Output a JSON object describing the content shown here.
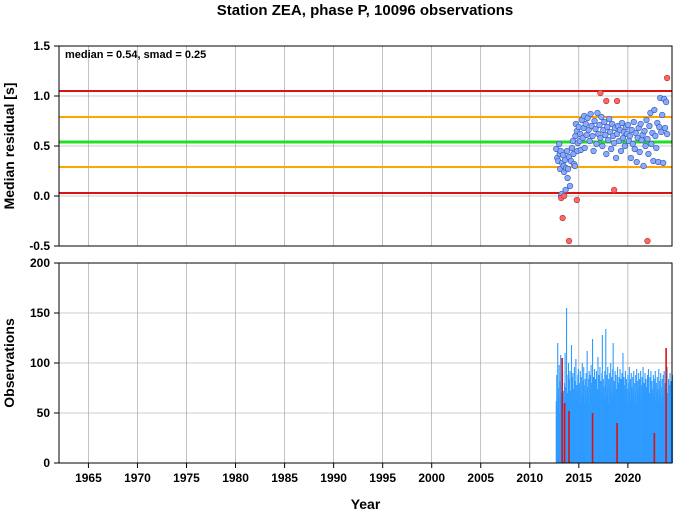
{
  "title": "Station ZEA, phase P, 10096 observations",
  "annotation": "median = 0.54, smad = 0.25",
  "colors": {
    "median_line": "#22dd22",
    "smad_line": "#ffa500",
    "limit_line": "#dd1111",
    "point_fill": "#88aaff",
    "outlier_fill": "#ff6666",
    "bar": "#2f9bff",
    "bar_outlier": "#dd1111"
  },
  "chart_data": [
    {
      "type": "scatter",
      "xlabel": "",
      "ylabel": "Median residual [s]",
      "xlim": [
        1962,
        2024.5
      ],
      "ylim": [
        -0.5,
        1.5
      ],
      "yticks": [
        -0.5,
        0.0,
        0.5,
        1.0,
        1.5
      ],
      "ytick_labels": [
        "-0.5",
        "0.0",
        "0.5",
        "1.0",
        "1.5"
      ],
      "grid": true,
      "hlines": [
        {
          "y": 1.05,
          "kind": "limit"
        },
        {
          "y": 0.79,
          "kind": "smad"
        },
        {
          "y": 0.54,
          "kind": "median"
        },
        {
          "y": 0.29,
          "kind": "smad"
        },
        {
          "y": 0.03,
          "kind": "limit"
        }
      ],
      "points": [
        [
          2012.7,
          0.47
        ],
        [
          2012.8,
          0.38
        ],
        [
          2012.9,
          0.35
        ],
        [
          2013.0,
          0.52
        ],
        [
          2013.05,
          0.42
        ],
        [
          2013.1,
          0.27
        ],
        [
          2013.15,
          0.45
        ],
        [
          2013.2,
          0.0
        ],
        [
          2013.25,
          0.02
        ],
        [
          2013.3,
          0.33
        ],
        [
          2013.4,
          0.41
        ],
        [
          2013.45,
          0.3
        ],
        [
          2013.5,
          0.24
        ],
        [
          2013.6,
          0.36
        ],
        [
          2013.65,
          0.06
        ],
        [
          2013.7,
          0.28
        ],
        [
          2013.8,
          0.45
        ],
        [
          2013.85,
          0.18
        ],
        [
          2013.9,
          0.27
        ],
        [
          2014.0,
          0.39
        ],
        [
          2014.1,
          0.1
        ],
        [
          2014.2,
          0.35
        ],
        [
          2014.3,
          0.48
        ],
        [
          2014.4,
          0.55
        ],
        [
          2014.45,
          0.42
        ],
        [
          2014.5,
          0.32
        ],
        [
          2014.6,
          0.3
        ],
        [
          2014.65,
          0.6
        ],
        [
          2014.7,
          0.72
        ],
        [
          2014.8,
          0.65
        ],
        [
          2014.85,
          0.45
        ],
        [
          2014.9,
          0.53
        ],
        [
          2015.0,
          0.69
        ],
        [
          2015.1,
          0.55
        ],
        [
          2015.15,
          0.62
        ],
        [
          2015.2,
          0.46
        ],
        [
          2015.3,
          0.76
        ],
        [
          2015.4,
          0.58
        ],
        [
          2015.5,
          0.68
        ],
        [
          2015.55,
          0.8
        ],
        [
          2015.6,
          0.48
        ],
        [
          2015.7,
          0.72
        ],
        [
          2015.8,
          0.61
        ],
        [
          2015.9,
          0.78
        ],
        [
          2016.0,
          0.66
        ],
        [
          2016.1,
          0.55
        ],
        [
          2016.2,
          0.82
        ],
        [
          2016.3,
          0.7
        ],
        [
          2016.4,
          0.6
        ],
        [
          2016.5,
          0.45
        ],
        [
          2016.6,
          0.75
        ],
        [
          2016.7,
          0.67
        ],
        [
          2016.8,
          0.52
        ],
        [
          2016.9,
          0.83
        ],
        [
          2017.0,
          0.62
        ],
        [
          2017.1,
          0.71
        ],
        [
          2017.2,
          0.58
        ],
        [
          2017.3,
          0.79
        ],
        [
          2017.4,
          0.5
        ],
        [
          2017.5,
          0.66
        ],
        [
          2017.6,
          0.74
        ],
        [
          2017.7,
          0.61
        ],
        [
          2017.8,
          0.42
        ],
        [
          2017.9,
          0.69
        ],
        [
          2018.0,
          0.56
        ],
        [
          2018.1,
          0.77
        ],
        [
          2018.2,
          0.64
        ],
        [
          2018.3,
          0.47
        ],
        [
          2018.4,
          0.72
        ],
        [
          2018.5,
          0.6
        ],
        [
          2018.6,
          0.53
        ],
        [
          2018.7,
          0.68
        ],
        [
          2018.8,
          0.38
        ],
        [
          2018.9,
          0.62
        ],
        [
          2019.0,
          0.7
        ],
        [
          2019.1,
          0.55
        ],
        [
          2019.2,
          0.66
        ],
        [
          2019.3,
          0.45
        ],
        [
          2019.4,
          0.73
        ],
        [
          2019.5,
          0.58
        ],
        [
          2019.6,
          0.64
        ],
        [
          2019.7,
          0.5
        ],
        [
          2019.8,
          0.69
        ],
        [
          2019.9,
          0.62
        ],
        [
          2020.0,
          0.71
        ],
        [
          2020.1,
          0.55
        ],
        [
          2020.2,
          0.6
        ],
        [
          2020.3,
          0.38
        ],
        [
          2020.4,
          0.66
        ],
        [
          2020.5,
          0.52
        ],
        [
          2020.6,
          0.74
        ],
        [
          2020.7,
          0.47
        ],
        [
          2020.8,
          0.63
        ],
        [
          2020.9,
          0.34
        ],
        [
          2021.0,
          0.58
        ],
        [
          2021.1,
          0.68
        ],
        [
          2021.2,
          0.44
        ],
        [
          2021.3,
          0.72
        ],
        [
          2021.4,
          0.56
        ],
        [
          2021.5,
          0.61
        ],
        [
          2021.6,
          0.3
        ],
        [
          2021.7,
          0.65
        ],
        [
          2021.8,
          0.5
        ],
        [
          2021.9,
          0.76
        ],
        [
          2022.0,
          0.57
        ],
        [
          2022.1,
          0.42
        ],
        [
          2022.2,
          0.7
        ],
        [
          2022.3,
          0.83
        ],
        [
          2022.4,
          0.52
        ],
        [
          2022.5,
          0.63
        ],
        [
          2022.6,
          0.35
        ],
        [
          2022.7,
          0.86
        ],
        [
          2022.8,
          0.6
        ],
        [
          2022.9,
          0.48
        ],
        [
          2023.0,
          0.73
        ],
        [
          2023.1,
          0.34
        ],
        [
          2023.2,
          0.69
        ],
        [
          2023.3,
          0.98
        ],
        [
          2023.4,
          0.64
        ],
        [
          2023.5,
          0.81
        ],
        [
          2023.6,
          0.33
        ],
        [
          2023.7,
          0.97
        ],
        [
          2023.8,
          0.68
        ],
        [
          2023.9,
          0.94
        ],
        [
          2024.0,
          0.62
        ]
      ],
      "outliers": [
        [
          2013.2,
          -0.02
        ],
        [
          2013.35,
          -0.22
        ],
        [
          2013.5,
          0.0
        ],
        [
          2014.0,
          -0.45
        ],
        [
          2014.8,
          -0.04
        ],
        [
          2017.2,
          1.03
        ],
        [
          2017.8,
          0.95
        ],
        [
          2018.6,
          0.06
        ],
        [
          2018.9,
          0.95
        ],
        [
          2022.0,
          -0.45
        ],
        [
          2024.0,
          1.18
        ]
      ]
    },
    {
      "type": "bar",
      "xlabel": "Year",
      "ylabel": "Observations",
      "xlim": [
        1962,
        2024.5
      ],
      "ylim": [
        0,
        200
      ],
      "yticks": [
        0,
        50,
        100,
        150,
        200
      ],
      "ytick_labels": [
        "0",
        "50",
        "100",
        "150",
        "200"
      ],
      "xticks": [
        1965,
        1970,
        1975,
        1980,
        1985,
        1990,
        1995,
        2000,
        2005,
        2010,
        2015,
        2020
      ],
      "xtick_labels": [
        "1965",
        "1970",
        "1975",
        "1980",
        "1985",
        "1990",
        "1995",
        "2000",
        "2005",
        "2010",
        "2015",
        "2020"
      ],
      "grid": true,
      "x_start": 2012.7,
      "x_step": 0.05,
      "values": [
        62,
        88,
        55,
        120,
        75,
        68,
        98,
        50,
        82,
        108,
        70,
        64,
        90,
        92,
        58,
        72,
        66,
        80,
        110,
        60,
        76,
        155,
        88,
        70,
        58,
        100,
        64,
        84,
        92,
        66,
        72,
        118,
        58,
        86,
        90,
        74,
        60,
        96,
        82,
        68,
        104,
        70,
        78,
        64,
        88,
        94,
        62,
        80,
        74,
        92,
        58,
        86,
        70,
        100,
        66,
        82,
        96,
        60,
        78,
        84,
        72,
        90,
        64,
        112,
        76,
        68,
        84,
        92,
        60,
        88,
        74,
        98,
        66,
        80,
        124,
        70,
        86,
        62,
        94,
        78,
        84,
        68,
        92,
        74,
        60,
        106,
        80,
        88,
        66,
        96,
        72,
        82,
        62,
        90,
        128,
        70,
        84,
        76,
        64,
        92,
        80,
        134,
        66,
        88,
        74,
        96,
        60,
        84,
        78,
        90,
        68,
        100,
        72,
        86,
        64,
        94,
        120,
        70,
        82,
        76,
        92,
        66,
        88,
        74,
        62,
        96,
        80,
        70,
        86,
        64,
        94,
        72,
        84,
        68,
        90,
        76,
        110,
        62,
        86,
        78,
        64,
        92,
        70,
        84,
        74,
        60,
        88,
        80,
        66,
        96,
        72,
        84,
        62,
        90,
        76,
        68,
        86,
        74,
        92,
        64,
        80,
        70,
        88,
        58,
        94,
        72,
        82,
        66,
        90,
        76,
        84,
        62,
        92,
        70,
        78,
        86,
        64,
        96,
        74,
        80,
        68,
        90,
        62,
        84,
        76,
        72,
        88,
        66,
        94,
        70,
        60,
        86,
        78,
        92,
        64,
        82,
        74,
        70,
        88,
        66,
        84,
        76,
        92,
        62,
        80,
        70,
        86,
        74,
        64,
        94,
        72,
        82,
        68,
        90,
        76,
        60,
        84,
        70,
        88,
        66,
        92,
        74,
        80,
        64,
        86,
        72,
        96,
        70,
        62,
        84,
        78,
        66,
        90,
        74,
        82,
        70,
        64,
        88
      ],
      "outlier_bars": [
        [
          2013.3,
          105
        ],
        [
          2013.55,
          60
        ],
        [
          2014.0,
          52
        ],
        [
          2016.4,
          50
        ],
        [
          2018.9,
          40
        ],
        [
          2022.7,
          30
        ],
        [
          2023.9,
          115
        ]
      ]
    }
  ]
}
